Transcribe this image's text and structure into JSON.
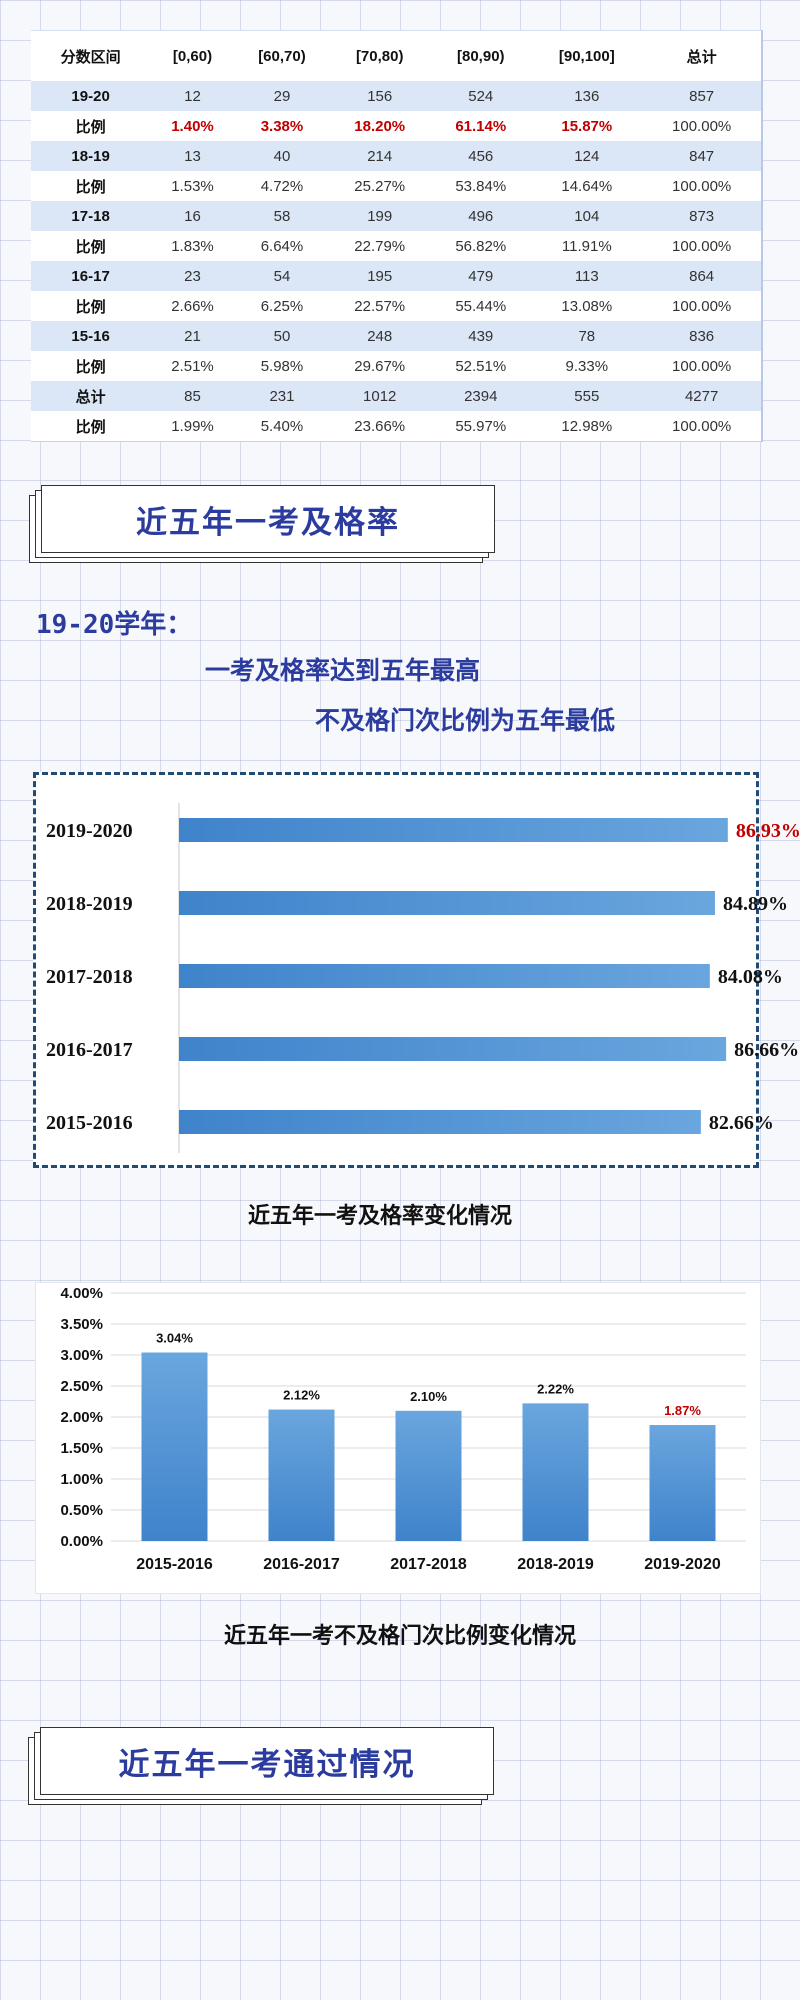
{
  "table": {
    "headers": [
      "分数区间",
      "[0,60)",
      "[60,70)",
      "[70,80)",
      "[80,90)",
      "[90,100]",
      "总计"
    ],
    "rows": [
      [
        "19-20",
        "12",
        "29",
        "156",
        "524",
        "136",
        "857"
      ],
      [
        "比例",
        "1.40%",
        "3.38%",
        "18.20%",
        "61.14%",
        "15.87%",
        "100.00%"
      ],
      [
        "18-19",
        "13",
        "40",
        "214",
        "456",
        "124",
        "847"
      ],
      [
        "比例",
        "1.53%",
        "4.72%",
        "25.27%",
        "53.84%",
        "14.64%",
        "100.00%"
      ],
      [
        "17-18",
        "16",
        "58",
        "199",
        "496",
        "104",
        "873"
      ],
      [
        "比例",
        "1.83%",
        "6.64%",
        "22.79%",
        "56.82%",
        "11.91%",
        "100.00%"
      ],
      [
        "16-17",
        "23",
        "54",
        "195",
        "479",
        "113",
        "864"
      ],
      [
        "比例",
        "2.66%",
        "6.25%",
        "22.57%",
        "55.44%",
        "13.08%",
        "100.00%"
      ],
      [
        "15-16",
        "21",
        "50",
        "248",
        "439",
        "78",
        "836"
      ],
      [
        "比例",
        "2.51%",
        "5.98%",
        "29.67%",
        "52.51%",
        "9.33%",
        "100.00%"
      ],
      [
        "总计",
        "85",
        "231",
        "1012",
        "2394",
        "555",
        "4277"
      ],
      [
        "比例",
        "1.99%",
        "5.40%",
        "23.66%",
        "55.97%",
        "12.98%",
        "100.00%"
      ]
    ],
    "highlight_color": "#c00000",
    "shade_color": "#dbe7f7"
  },
  "section1": {
    "title": "近五年一考及格率",
    "year_label": "19-20学年：",
    "line1": "一考及格率达到五年最高",
    "line2": "不及格门次比例为五年最低"
  },
  "section2": {
    "title": "近五年一考通过情况"
  },
  "chart_data": [
    {
      "type": "bar",
      "orientation": "horizontal",
      "categories": [
        "2019-2020",
        "2018-2019",
        "2017-2018",
        "2016-2017",
        "2015-2016"
      ],
      "values": [
        86.93,
        84.89,
        84.08,
        86.66,
        82.66
      ],
      "labels": [
        "86.93%",
        "84.89%",
        "84.08%",
        "86.66%",
        "82.66%"
      ],
      "highlight_index": 0,
      "highlight_color": "#c00000",
      "bar_color": "#5b9bd5",
      "title": "近五年一考及格率变化情况"
    },
    {
      "type": "bar",
      "orientation": "vertical",
      "categories": [
        "2015-2016",
        "2016-2017",
        "2017-2018",
        "2018-2019",
        "2019-2020"
      ],
      "values": [
        3.04,
        2.12,
        2.1,
        2.22,
        1.87
      ],
      "labels": [
        "3.04%",
        "2.12%",
        "2.10%",
        "2.22%",
        "1.87%"
      ],
      "yticks": [
        "4.00%",
        "3.50%",
        "3.00%",
        "2.50%",
        "2.00%",
        "1.50%",
        "1.00%",
        "0.50%",
        "0.00%"
      ],
      "ylim": [
        0,
        4
      ],
      "grid": true,
      "highlight_index": 4,
      "highlight_color": "#c00000",
      "bar_color": "#5b9bd5",
      "title": "近五年一考不及格门次比例变化情况"
    }
  ]
}
